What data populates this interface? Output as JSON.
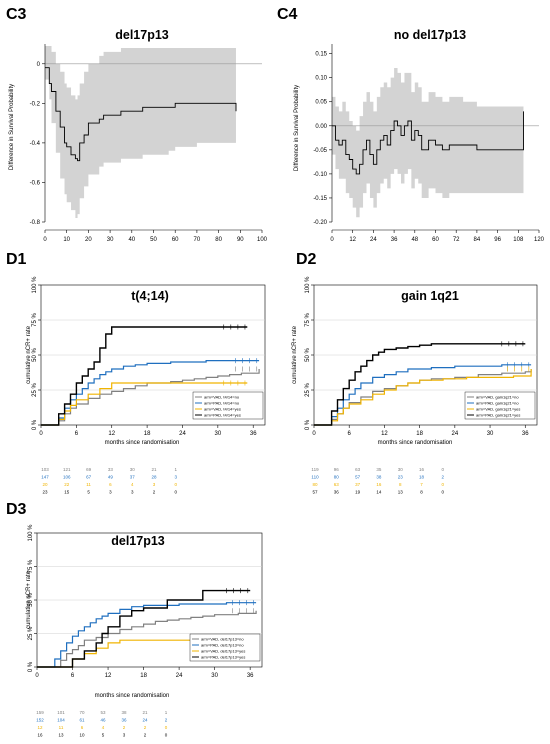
{
  "chart_data": [
    {
      "id": "C3",
      "panel_label": "C3",
      "title": "del17p13",
      "type": "line",
      "ylabel": "Difference in Survival Probability",
      "xlim": [
        0,
        100
      ],
      "ylim": [
        -0.8,
        0.1
      ],
      "xticks": [
        0,
        10,
        20,
        30,
        40,
        50,
        60,
        70,
        80,
        90,
        100
      ],
      "yticks": [
        0,
        -0.2,
        -0.4,
        -0.6,
        -0.8
      ],
      "ytick_labels": [
        "0",
        "-0.2",
        "-0.4",
        "-0.6",
        "-0.8"
      ],
      "reference_line": 0,
      "band_color": "#d3d3d3",
      "series": [
        {
          "x": [
            0,
            2,
            3,
            5,
            7,
            9,
            10,
            12,
            14,
            15,
            16,
            18,
            20,
            25,
            27,
            34,
            35,
            45,
            57,
            60,
            70,
            80,
            87,
            88
          ],
          "y": [
            -0.02,
            -0.1,
            -0.14,
            -0.24,
            -0.32,
            -0.4,
            -0.42,
            -0.46,
            -0.48,
            -0.49,
            -0.4,
            -0.36,
            -0.3,
            -0.28,
            -0.26,
            -0.26,
            -0.24,
            -0.22,
            -0.22,
            -0.2,
            -0.2,
            -0.2,
            -0.2,
            -0.24
          ],
          "lower": [
            -0.08,
            -0.18,
            -0.3,
            -0.45,
            -0.58,
            -0.66,
            -0.7,
            -0.74,
            -0.78,
            -0.76,
            -0.68,
            -0.62,
            -0.56,
            -0.52,
            -0.5,
            -0.5,
            -0.48,
            -0.46,
            -0.44,
            -0.42,
            -0.4,
            -0.4,
            -0.4,
            -0.4
          ],
          "upper": [
            0.09,
            0.09,
            0.06,
            0.0,
            -0.04,
            -0.1,
            -0.12,
            -0.16,
            -0.18,
            -0.16,
            -0.1,
            -0.04,
            0.0,
            0.04,
            0.06,
            0.06,
            0.08,
            0.08,
            0.08,
            0.08,
            0.08,
            0.08,
            0.08,
            0.08
          ]
        }
      ]
    },
    {
      "id": "C4",
      "panel_label": "C4",
      "title": "no del17p13",
      "type": "line",
      "ylabel": "Difference in Survival Probability",
      "xlim": [
        0,
        120
      ],
      "ylim": [
        -0.2,
        0.17
      ],
      "xticks": [
        0,
        12,
        24,
        36,
        48,
        60,
        72,
        84,
        96,
        108,
        120
      ],
      "yticks": [
        0.15,
        0.1,
        0.05,
        0.0,
        -0.05,
        -0.1,
        -0.15,
        -0.2
      ],
      "ytick_labels": [
        "0.15",
        "0.10",
        "0.05",
        "0.00",
        "-0.05",
        "-0.10",
        "-0.15",
        "-0.20"
      ],
      "reference_line": 0,
      "band_color": "#d3d3d3",
      "series": [
        {
          "x": [
            0,
            2,
            4,
            6,
            8,
            10,
            12,
            14,
            16,
            18,
            20,
            22,
            24,
            26,
            28,
            30,
            32,
            34,
            36,
            38,
            40,
            42,
            44,
            46,
            48,
            50,
            52,
            56,
            60,
            64,
            68,
            72,
            76,
            80,
            84,
            88,
            92,
            96,
            100,
            108,
            110,
            111
          ],
          "y": [
            0.0,
            -0.03,
            -0.04,
            -0.03,
            -0.06,
            -0.07,
            -0.09,
            -0.1,
            -0.08,
            -0.05,
            -0.03,
            -0.06,
            -0.08,
            -0.05,
            -0.03,
            -0.02,
            -0.04,
            -0.01,
            0.01,
            0.0,
            -0.02,
            0.0,
            0.01,
            -0.03,
            -0.01,
            -0.02,
            -0.05,
            -0.03,
            -0.04,
            -0.05,
            -0.04,
            -0.04,
            -0.04,
            -0.04,
            -0.05,
            -0.05,
            -0.05,
            -0.05,
            -0.05,
            -0.05,
            -0.05,
            0.03
          ],
          "lower": [
            -0.06,
            -0.09,
            -0.11,
            -0.11,
            -0.14,
            -0.15,
            -0.17,
            -0.19,
            -0.17,
            -0.14,
            -0.12,
            -0.15,
            -0.17,
            -0.14,
            -0.12,
            -0.11,
            -0.13,
            -0.1,
            -0.09,
            -0.1,
            -0.12,
            -0.1,
            -0.09,
            -0.13,
            -0.11,
            -0.12,
            -0.15,
            -0.13,
            -0.14,
            -0.15,
            -0.14,
            -0.14,
            -0.14,
            -0.14,
            -0.14,
            -0.14,
            -0.14,
            -0.14,
            -0.14,
            -0.14,
            -0.14,
            -0.05
          ],
          "upper": [
            0.06,
            0.04,
            0.03,
            0.05,
            0.03,
            0.01,
            0.0,
            -0.01,
            0.02,
            0.05,
            0.07,
            0.05,
            0.03,
            0.06,
            0.08,
            0.09,
            0.08,
            0.1,
            0.12,
            0.11,
            0.09,
            0.11,
            0.11,
            0.07,
            0.09,
            0.08,
            0.05,
            0.07,
            0.06,
            0.05,
            0.06,
            0.06,
            0.05,
            0.05,
            0.04,
            0.04,
            0.04,
            0.04,
            0.04,
            0.04,
            0.04,
            0.16
          ]
        }
      ]
    },
    {
      "id": "D1",
      "panel_label": "D1",
      "title": "t(4;14)",
      "type": "line",
      "ylabel": "cumulative nCR+ rate",
      "xlabel": "months since randomisation",
      "xlim": [
        0,
        38
      ],
      "ylim": [
        0,
        100
      ],
      "xticks": [
        0,
        6,
        12,
        18,
        24,
        30,
        36
      ],
      "yticks": [
        0,
        25,
        50,
        75,
        100
      ],
      "ytick_labels": [
        "0 %",
        "25 %",
        "50 %",
        "75 %",
        "100 %"
      ],
      "series": [
        {
          "name": "arm=VAD, t4/14=no",
          "color": "#808080",
          "x": [
            0,
            3,
            4,
            5,
            6,
            8,
            10,
            12,
            14,
            16,
            18,
            20,
            22,
            24,
            26,
            28,
            30,
            32,
            34,
            36,
            37
          ],
          "y": [
            0,
            3,
            8,
            12,
            15,
            19,
            22,
            24,
            26,
            28,
            30,
            30,
            31,
            32,
            33,
            34,
            35,
            36,
            37,
            37,
            40
          ]
        },
        {
          "name": "arm=PAD, t4/14=no",
          "color": "#1f6fbf",
          "x": [
            0,
            3,
            4,
            5,
            6,
            7,
            8,
            9,
            10,
            11,
            12,
            14,
            16,
            18,
            20,
            22,
            24,
            26,
            28,
            30,
            32,
            36,
            37
          ],
          "y": [
            0,
            5,
            12,
            18,
            22,
            26,
            30,
            33,
            36,
            38,
            40,
            42,
            43,
            44,
            44,
            45,
            45,
            45,
            46,
            46,
            46,
            46,
            46
          ]
        },
        {
          "name": "arm=VAD, t4/14=yes",
          "color": "#f0b400",
          "x": [
            0,
            3,
            4,
            5,
            6,
            8,
            10,
            12,
            16,
            20,
            24,
            28,
            32,
            35
          ],
          "y": [
            0,
            4,
            10,
            14,
            18,
            22,
            26,
            30,
            30,
            30,
            30,
            30,
            30,
            30
          ]
        },
        {
          "name": "arm=PAD, t4/14=yes",
          "color": "#000000",
          "x": [
            0,
            3,
            4,
            5,
            6,
            7,
            8,
            9,
            10,
            11,
            12,
            14,
            16,
            18,
            20,
            22,
            24,
            26,
            28,
            30,
            32,
            34,
            35
          ],
          "y": [
            0,
            8,
            15,
            22,
            30,
            35,
            40,
            45,
            55,
            65,
            70,
            70,
            70,
            70,
            70,
            70,
            70,
            70,
            70,
            70,
            70,
            70,
            70
          ]
        }
      ],
      "risk_table": [
        {
          "color": "#808080",
          "values": [
            "103",
            "121",
            "69",
            "33",
            "30",
            "21",
            "1"
          ]
        },
        {
          "color": "#1f6fbf",
          "values": [
            "147",
            "106",
            "67",
            "49",
            "37",
            "28",
            "3"
          ]
        },
        {
          "color": "#f0b400",
          "values": [
            "20",
            "22",
            "11",
            "6",
            "4",
            "3",
            "0"
          ]
        },
        {
          "color": "#000000",
          "values": [
            "23",
            "15",
            "5",
            "3",
            "3",
            "2",
            "0"
          ]
        }
      ]
    },
    {
      "id": "D2",
      "panel_label": "D2",
      "title": "gain 1q21",
      "type": "line",
      "ylabel": "cumulative nCR+ rate",
      "xlabel": "months since randomisation",
      "xlim": [
        0,
        38
      ],
      "ylim": [
        0,
        100
      ],
      "xticks": [
        0,
        6,
        12,
        18,
        24,
        30,
        36
      ],
      "yticks": [
        0,
        25,
        50,
        75,
        100
      ],
      "ytick_labels": [
        "0 %",
        "25 %",
        "50 %",
        "75 %",
        "100 %"
      ],
      "series": [
        {
          "name": "arm=VAD, gain1q21=no",
          "color": "#808080",
          "x": [
            0,
            3,
            4,
            5,
            6,
            8,
            10,
            12,
            14,
            16,
            18,
            20,
            24,
            28,
            32,
            36,
            37
          ],
          "y": [
            0,
            4,
            8,
            12,
            16,
            20,
            24,
            26,
            28,
            30,
            32,
            33,
            34,
            36,
            37,
            38,
            40
          ]
        },
        {
          "name": "arm=PAD, gain1q21=no",
          "color": "#1f6fbf",
          "x": [
            0,
            3,
            4,
            5,
            6,
            7,
            8,
            10,
            12,
            14,
            16,
            18,
            20,
            24,
            28,
            32,
            36,
            37
          ],
          "y": [
            0,
            6,
            12,
            18,
            22,
            26,
            30,
            34,
            36,
            38,
            40,
            40,
            41,
            42,
            42,
            43,
            43,
            43
          ]
        },
        {
          "name": "arm=VAD, gain1q21=yes",
          "color": "#f0b400",
          "x": [
            0,
            3,
            4,
            5,
            6,
            8,
            10,
            12,
            14,
            16,
            18,
            22,
            26,
            30,
            34,
            36,
            37
          ],
          "y": [
            0,
            3,
            8,
            12,
            15,
            18,
            22,
            25,
            28,
            30,
            32,
            33,
            34,
            34,
            35,
            35,
            40
          ]
        },
        {
          "name": "arm=PAD, gain1q21=yes",
          "color": "#000000",
          "x": [
            0,
            3,
            4,
            5,
            6,
            7,
            8,
            9,
            10,
            11,
            12,
            14,
            16,
            18,
            20,
            24,
            28,
            32,
            36
          ],
          "y": [
            0,
            10,
            18,
            26,
            32,
            38,
            42,
            46,
            50,
            52,
            54,
            55,
            56,
            57,
            58,
            58,
            58,
            58,
            58
          ]
        }
      ],
      "risk_table": [
        {
          "color": "#808080",
          "values": [
            "119",
            "96",
            "63",
            "35",
            "30",
            "16",
            "0"
          ]
        },
        {
          "color": "#1f6fbf",
          "values": [
            "110",
            "80",
            "57",
            "38",
            "23",
            "18",
            "2"
          ]
        },
        {
          "color": "#f0b400",
          "values": [
            "80",
            "63",
            "37",
            "16",
            "8",
            "7",
            "0"
          ]
        },
        {
          "color": "#000000",
          "values": [
            "57",
            "36",
            "19",
            "14",
            "13",
            "8",
            "0"
          ]
        }
      ]
    },
    {
      "id": "D3",
      "panel_label": "D3",
      "title": "del17p13",
      "type": "line",
      "ylabel": "cumulative nCR+ rate",
      "xlabel": "months since randomisation",
      "xlim": [
        0,
        38
      ],
      "ylim": [
        0,
        100
      ],
      "xticks": [
        0,
        6,
        12,
        18,
        24,
        30,
        36
      ],
      "yticks": [
        0,
        25,
        50,
        75,
        100
      ],
      "ytick_labels": [
        "0 %",
        "25 %",
        "50 %",
        "75 %",
        "100 %"
      ],
      "series": [
        {
          "name": "arm=VAD, del17p13=no",
          "color": "#808080",
          "x": [
            0,
            4,
            5,
            6,
            7,
            8,
            10,
            12,
            14,
            16,
            18,
            20,
            22,
            24,
            26,
            28,
            30,
            32,
            34,
            36,
            37
          ],
          "y": [
            0,
            5,
            10,
            13,
            16,
            20,
            22,
            25,
            28,
            30,
            32,
            34,
            35,
            36,
            37,
            38,
            39,
            39,
            40,
            40,
            42
          ]
        },
        {
          "name": "arm=PAD, del17p13=no",
          "color": "#1f6fbf",
          "x": [
            0,
            3,
            4,
            5,
            6,
            7,
            8,
            9,
            10,
            11,
            12,
            14,
            16,
            18,
            20,
            24,
            28,
            32,
            36,
            37
          ],
          "y": [
            0,
            6,
            12,
            18,
            23,
            27,
            30,
            33,
            36,
            38,
            40,
            43,
            45,
            46,
            46,
            47,
            47,
            48,
            48,
            48
          ]
        },
        {
          "name": "arm=VAD, del17p13=yes",
          "color": "#f0b400",
          "x": [
            0,
            6,
            8,
            10,
            12,
            14,
            16,
            20,
            24,
            28,
            32,
            36
          ],
          "y": [
            0,
            6,
            10,
            14,
            18,
            20,
            20,
            20,
            20,
            20,
            20,
            20
          ]
        },
        {
          "name": "arm=PAD, del17p13=yes",
          "color": "#000000",
          "x": [
            0,
            6,
            8,
            10,
            11,
            12,
            14,
            16,
            18,
            20,
            22,
            24,
            26,
            28,
            30,
            32,
            34,
            36
          ],
          "y": [
            0,
            6,
            12,
            18,
            25,
            30,
            38,
            42,
            44,
            44,
            50,
            50,
            50,
            57,
            57,
            57,
            57,
            57
          ]
        }
      ],
      "risk_table": [
        {
          "color": "#808080",
          "values": [
            "159",
            "101",
            "70",
            "53",
            "38",
            "21",
            "1"
          ]
        },
        {
          "color": "#1f6fbf",
          "values": [
            "152",
            "104",
            "61",
            "46",
            "36",
            "24",
            "2"
          ]
        },
        {
          "color": "#f0b400",
          "values": [
            "12",
            "11",
            "6",
            "4",
            "2",
            "2",
            "0"
          ]
        },
        {
          "color": "#000000",
          "values": [
            "16",
            "13",
            "10",
            "5",
            "3",
            "2",
            "0"
          ]
        }
      ]
    }
  ]
}
